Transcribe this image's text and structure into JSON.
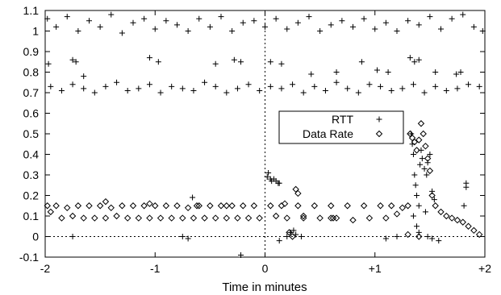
{
  "chart_data": {
    "type": "scatter",
    "xlabel": "Time in minutes",
    "ylabel": "",
    "xlim": [
      -2,
      2
    ],
    "ylim": [
      -0.1,
      1.1
    ],
    "x_ticks": [
      {
        "value": -2,
        "label": "-2"
      },
      {
        "value": -1,
        "label": "-1"
      },
      {
        "value": 0,
        "label": "0"
      },
      {
        "value": 1,
        "label": "+1"
      },
      {
        "value": 2,
        "label": "+2"
      }
    ],
    "y_ticks": [
      {
        "value": -0.1,
        "label": "-0.1"
      },
      {
        "value": 0,
        "label": "0"
      },
      {
        "value": 0.1,
        "label": "0.1"
      },
      {
        "value": 0.2,
        "label": "0.2"
      },
      {
        "value": 0.3,
        "label": "0.3"
      },
      {
        "value": 0.4,
        "label": "0.4"
      },
      {
        "value": 0.5,
        "label": "0.5"
      },
      {
        "value": 0.6,
        "label": "0.6"
      },
      {
        "value": 0.7,
        "label": "0.7"
      },
      {
        "value": 0.8,
        "label": "0.8"
      },
      {
        "value": 0.9,
        "label": "0.9"
      },
      {
        "value": 1,
        "label": "1"
      },
      {
        "value": 1.1,
        "label": "1.1"
      }
    ],
    "reference_lines": [
      {
        "axis": "x",
        "value": 0,
        "style": "dashed"
      },
      {
        "axis": "y",
        "value": 0,
        "style": "dashed"
      }
    ],
    "legend_position": "center-right",
    "series": [
      {
        "name": "RTT",
        "marker": "plus",
        "points": [
          [
            -1.98,
            1.06
          ],
          [
            -1.9,
            1.02
          ],
          [
            -1.8,
            1.07
          ],
          [
            -1.7,
            1.0
          ],
          [
            -1.6,
            1.05
          ],
          [
            -1.5,
            1.02
          ],
          [
            -1.4,
            1.08
          ],
          [
            -1.3,
            0.99
          ],
          [
            -1.2,
            1.04
          ],
          [
            -1.1,
            1.06
          ],
          [
            -1.0,
            1.01
          ],
          [
            -0.9,
            1.05
          ],
          [
            -0.8,
            1.03
          ],
          [
            -0.7,
            1.0
          ],
          [
            -0.6,
            1.06
          ],
          [
            -0.5,
            1.02
          ],
          [
            -0.4,
            1.07
          ],
          [
            -0.3,
            1.0
          ],
          [
            -0.2,
            1.04
          ],
          [
            -0.1,
            1.05
          ],
          [
            0.0,
            1.02
          ],
          [
            0.1,
            1.06
          ],
          [
            0.2,
            1.01
          ],
          [
            0.3,
            1.04
          ],
          [
            0.4,
            1.07
          ],
          [
            0.5,
            1.0
          ],
          [
            0.6,
            1.03
          ],
          [
            0.7,
            1.05
          ],
          [
            0.8,
            1.02
          ],
          [
            0.9,
            1.06
          ],
          [
            1.0,
            1.01
          ],
          [
            1.1,
            1.04
          ],
          [
            1.2,
            1.0
          ],
          [
            1.3,
            1.05
          ],
          [
            1.4,
            1.03
          ],
          [
            1.5,
            1.07
          ],
          [
            1.6,
            1.01
          ],
          [
            1.7,
            1.06
          ],
          [
            1.8,
            1.08
          ],
          [
            1.9,
            1.02
          ],
          [
            1.98,
            1.0
          ],
          [
            -1.95,
            0.73
          ],
          [
            -1.85,
            0.71
          ],
          [
            -1.75,
            0.74
          ],
          [
            -1.65,
            0.72
          ],
          [
            -1.55,
            0.7
          ],
          [
            -1.45,
            0.73
          ],
          [
            -1.35,
            0.75
          ],
          [
            -1.25,
            0.71
          ],
          [
            -1.15,
            0.72
          ],
          [
            -1.05,
            0.74
          ],
          [
            -0.95,
            0.7
          ],
          [
            -0.85,
            0.73
          ],
          [
            -0.75,
            0.72
          ],
          [
            -0.65,
            0.71
          ],
          [
            -0.55,
            0.75
          ],
          [
            -0.45,
            0.73
          ],
          [
            -0.35,
            0.7
          ],
          [
            -0.25,
            0.72
          ],
          [
            -0.15,
            0.74
          ],
          [
            -0.05,
            0.71
          ],
          [
            0.05,
            0.73
          ],
          [
            0.15,
            0.72
          ],
          [
            0.25,
            0.74
          ],
          [
            0.35,
            0.7
          ],
          [
            0.45,
            0.73
          ],
          [
            0.55,
            0.71
          ],
          [
            0.65,
            0.75
          ],
          [
            0.75,
            0.72
          ],
          [
            0.85,
            0.7
          ],
          [
            0.95,
            0.74
          ],
          [
            1.05,
            0.73
          ],
          [
            1.15,
            0.71
          ],
          [
            1.25,
            0.72
          ],
          [
            1.35,
            0.74
          ],
          [
            1.45,
            0.7
          ],
          [
            1.55,
            0.73
          ],
          [
            1.65,
            0.71
          ],
          [
            1.75,
            0.72
          ],
          [
            1.85,
            0.74
          ],
          [
            1.95,
            0.73
          ],
          [
            -1.97,
            0.84
          ],
          [
            -1.75,
            0.86
          ],
          [
            -1.72,
            0.85
          ],
          [
            -1.65,
            0.78
          ],
          [
            -1.05,
            0.87
          ],
          [
            -0.97,
            0.85
          ],
          [
            -0.45,
            0.84
          ],
          [
            -0.28,
            0.86
          ],
          [
            -0.22,
            0.85
          ],
          [
            0.05,
            0.85
          ],
          [
            0.15,
            0.84
          ],
          [
            0.42,
            0.79
          ],
          [
            0.65,
            0.8
          ],
          [
            0.88,
            0.85
          ],
          [
            1.02,
            0.81
          ],
          [
            1.12,
            0.8
          ],
          [
            1.32,
            0.87
          ],
          [
            1.36,
            0.85
          ],
          [
            1.4,
            0.86
          ],
          [
            1.55,
            0.8
          ],
          [
            1.74,
            0.79
          ],
          [
            1.78,
            0.8
          ],
          [
            0.02,
            0.29
          ],
          [
            0.03,
            0.31
          ],
          [
            0.05,
            0.28
          ],
          [
            0.06,
            0.27
          ],
          [
            0.08,
            0.28
          ],
          [
            0.1,
            0.27
          ],
          [
            0.12,
            0.26
          ],
          [
            0.13,
            0.26
          ],
          [
            -1.75,
            0.0
          ],
          [
            -0.75,
            0.0
          ],
          [
            -0.7,
            -0.01
          ],
          [
            -0.22,
            -0.09
          ],
          [
            0.13,
            -0.02
          ],
          [
            0.2,
            0.0
          ],
          [
            0.23,
            0.02
          ],
          [
            0.26,
            0.03
          ],
          [
            0.28,
            0.01
          ],
          [
            0.33,
            0.0
          ],
          [
            1.1,
            -0.01
          ],
          [
            1.2,
            0.0
          ],
          [
            1.48,
            0.0
          ],
          [
            1.52,
            -0.01
          ],
          [
            1.58,
            -0.02
          ],
          [
            -0.66,
            0.19
          ],
          [
            1.33,
            0.5
          ],
          [
            1.34,
            0.45
          ],
          [
            1.35,
            0.4
          ],
          [
            1.36,
            0.3
          ],
          [
            1.37,
            0.25
          ],
          [
            1.38,
            0.2
          ],
          [
            1.4,
            0.15
          ],
          [
            1.41,
            0.35
          ],
          [
            1.42,
            0.42
          ],
          [
            1.43,
            0.38
          ],
          [
            1.45,
            0.33
          ],
          [
            1.47,
            0.3
          ],
          [
            1.48,
            0.36
          ],
          [
            1.5,
            0.4
          ],
          [
            1.52,
            0.22
          ],
          [
            1.54,
            0.18
          ],
          [
            1.35,
            0.1
          ],
          [
            1.38,
            0.05
          ],
          [
            1.4,
            0.02
          ],
          [
            1.46,
            0.12
          ],
          [
            1.83,
            0.26
          ],
          [
            1.83,
            0.24
          ],
          [
            1.81,
            0.15
          ]
        ]
      },
      {
        "name": "Data Rate",
        "marker": "diamond",
        "points": [
          [
            -1.98,
            0.15
          ],
          [
            -1.9,
            0.15
          ],
          [
            -1.8,
            0.14
          ],
          [
            -1.7,
            0.15
          ],
          [
            -1.6,
            0.15
          ],
          [
            -1.5,
            0.15
          ],
          [
            -1.4,
            0.14
          ],
          [
            -1.3,
            0.15
          ],
          [
            -1.2,
            0.15
          ],
          [
            -1.1,
            0.15
          ],
          [
            -1.0,
            0.15
          ],
          [
            -0.9,
            0.15
          ],
          [
            -0.8,
            0.15
          ],
          [
            -0.7,
            0.14
          ],
          [
            -0.6,
            0.15
          ],
          [
            -0.5,
            0.15
          ],
          [
            -0.4,
            0.15
          ],
          [
            -0.3,
            0.15
          ],
          [
            -0.2,
            0.15
          ],
          [
            -0.1,
            0.15
          ],
          [
            0.05,
            0.15
          ],
          [
            0.15,
            0.15
          ],
          [
            0.3,
            0.15
          ],
          [
            0.45,
            0.15
          ],
          [
            0.6,
            0.15
          ],
          [
            0.75,
            0.15
          ],
          [
            0.9,
            0.15
          ],
          [
            1.05,
            0.15
          ],
          [
            1.15,
            0.15
          ],
          [
            1.25,
            0.14
          ],
          [
            1.3,
            0.15
          ],
          [
            -1.95,
            0.12
          ],
          [
            -1.85,
            0.09
          ],
          [
            -1.75,
            0.1
          ],
          [
            -1.65,
            0.09
          ],
          [
            -1.55,
            0.09
          ],
          [
            -1.45,
            0.09
          ],
          [
            -1.35,
            0.1
          ],
          [
            -1.25,
            0.09
          ],
          [
            -1.15,
            0.09
          ],
          [
            -1.05,
            0.09
          ],
          [
            -0.95,
            0.09
          ],
          [
            -0.85,
            0.09
          ],
          [
            -0.75,
            0.09
          ],
          [
            -0.65,
            0.09
          ],
          [
            -0.55,
            0.09
          ],
          [
            -0.45,
            0.09
          ],
          [
            -0.35,
            0.09
          ],
          [
            -0.25,
            0.09
          ],
          [
            -0.15,
            0.09
          ],
          [
            -0.05,
            0.09
          ],
          [
            0.1,
            0.1
          ],
          [
            0.2,
            0.09
          ],
          [
            0.35,
            0.09
          ],
          [
            0.5,
            0.09
          ],
          [
            0.65,
            0.09
          ],
          [
            0.8,
            0.08
          ],
          [
            0.95,
            0.09
          ],
          [
            1.1,
            0.09
          ],
          [
            1.2,
            0.11
          ],
          [
            -1.45,
            0.17
          ],
          [
            -1.05,
            0.16
          ],
          [
            -0.62,
            0.15
          ],
          [
            -0.35,
            0.15
          ],
          [
            0.18,
            0.16
          ],
          [
            0.28,
            0.23
          ],
          [
            0.3,
            0.21
          ],
          [
            0.35,
            0.1
          ],
          [
            0.6,
            0.09
          ],
          [
            0.62,
            0.09
          ],
          [
            1.32,
            0.5
          ],
          [
            1.34,
            0.48
          ],
          [
            1.36,
            0.46
          ],
          [
            1.38,
            0.42
          ],
          [
            1.4,
            0.47
          ],
          [
            1.42,
            0.55
          ],
          [
            1.44,
            0.5
          ],
          [
            1.46,
            0.44
          ],
          [
            1.48,
            0.38
          ],
          [
            1.5,
            0.32
          ],
          [
            1.52,
            0.2
          ],
          [
            1.55,
            0.15
          ],
          [
            1.6,
            0.12
          ],
          [
            1.65,
            0.1
          ],
          [
            1.7,
            0.09
          ],
          [
            1.75,
            0.08
          ],
          [
            1.8,
            0.07
          ],
          [
            1.85,
            0.05
          ],
          [
            1.9,
            0.03
          ],
          [
            1.95,
            0.01
          ],
          [
            0.22,
            0.02
          ],
          [
            0.25,
            0.0
          ],
          [
            1.3,
            0.01
          ],
          [
            1.4,
            0.0
          ]
        ]
      }
    ]
  }
}
